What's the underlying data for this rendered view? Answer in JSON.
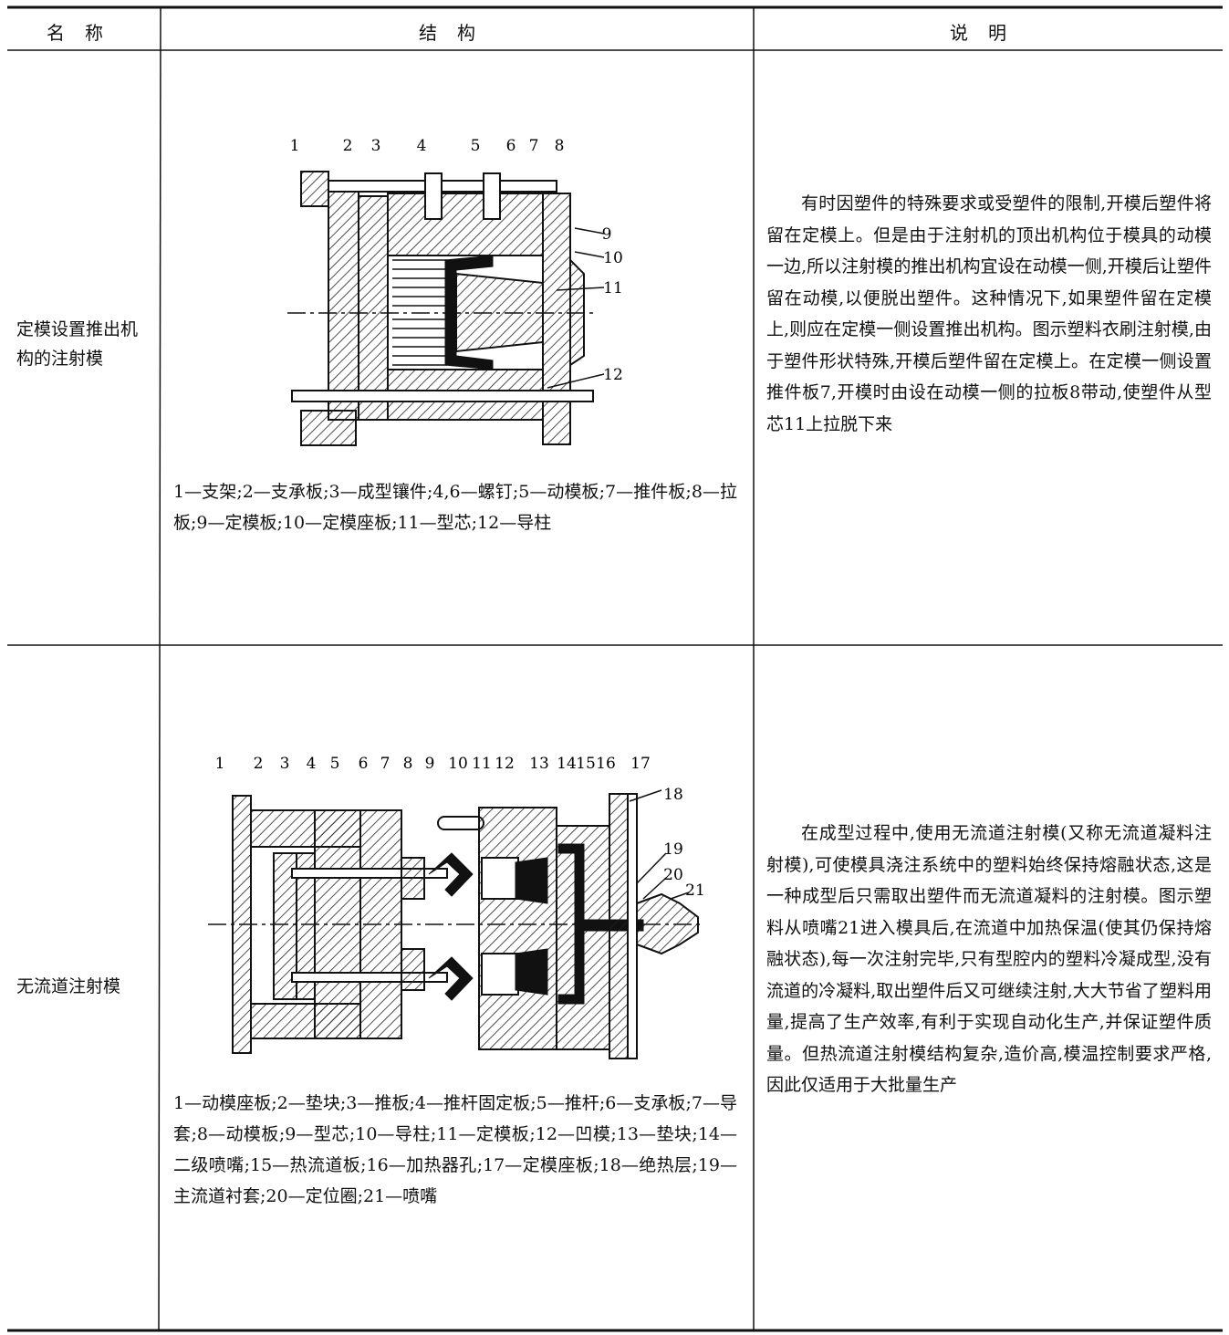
{
  "table": {
    "header": [
      "名称",
      "结构",
      "说明"
    ],
    "rows": [
      {
        "name": "定模设置推出机构的注射模",
        "figure_labels": [
          "1",
          "2",
          "3",
          "4",
          "5",
          "6",
          "7",
          "8",
          "9",
          "10",
          "11",
          "12"
        ],
        "caption": "1—支架;2—支承板;3—成型镶件;4,6—螺钉;5—动模板;7—推件板;8—拉板;9—定模板;10—定模座板;11—型芯;12—导柱",
        "description": "有时因塑件的特殊要求或受塑件的限制,开模后塑件将留在定模上。但是由于注射机的顶出机构位于模具的动模一边,所以注射模的推出机构宜设在动模一侧,开模后让塑件留在动模,以便脱出塑件。这种情况下,如果塑件留在定模上,则应在定模一侧设置推出机构。图示塑料衣刷注射模,由于塑件形状特殊,开模后塑件留在定模上。在定模一侧设置推件板7,开模时由设在动模一侧的拉板8带动,使塑件从型芯11上拉脱下来"
      },
      {
        "name": "无流道注射模",
        "figure_labels": [
          "1",
          "2",
          "3",
          "4",
          "5",
          "6",
          "7",
          "8",
          "9",
          "10",
          "11",
          "12",
          "13",
          "14",
          "15",
          "16",
          "17",
          "18",
          "19",
          "20",
          "21"
        ],
        "caption": "1—动模座板;2—垫块;3—推板;4—推杆固定板;5—推杆;6—支承板;7—导套;8—动模板;9—型芯;10—导柱;11—定模板;12—凹模;13—垫块;14—二级喷嘴;15—热流道板;16—加热器孔;17—定模座板;18—绝热层;19—主流道衬套;20—定位圈;21—喷嘴",
        "description": "在成型过程中,使用无流道注射模(又称无流道凝料注射模),可使模具浇注系统中的塑料始终保持熔融状态,这是一种成型后只需取出塑件而无流道凝料的注射模。图示塑料从喷嘴21进入模具后,在流道中加热保温(使其仍保持熔融状态),每一次注射完毕,只有型腔内的塑料冷凝成型,没有流道的冷凝料,取出塑件后又可继续注射,大大节省了塑料用量,提高了生产效率,有利于实现自动化生产,并保证塑件质量。但热流道注射模结构复杂,造价高,模温控制要求严格,因此仅适用于大批量生产"
      }
    ]
  }
}
